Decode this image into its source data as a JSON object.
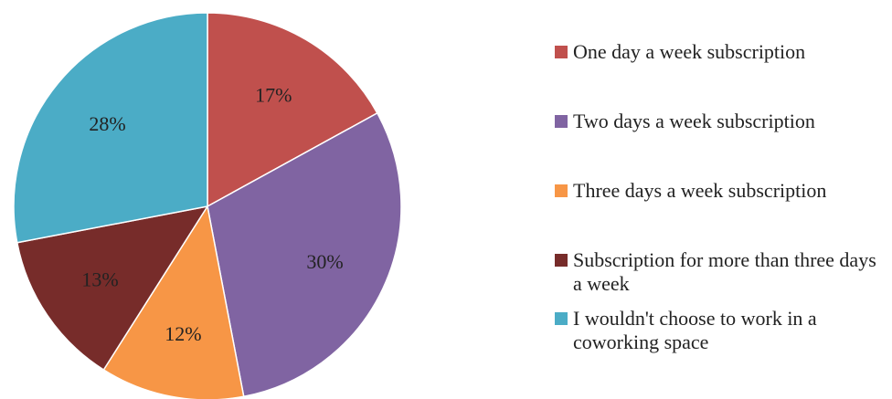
{
  "chart_data": {
    "type": "pie",
    "slices": [
      {
        "label": "One day a week subscription",
        "value": 17,
        "display": "17%",
        "color": "#C0504D"
      },
      {
        "label": "Two days a week subscription",
        "value": 30,
        "display": "30%",
        "color": "#8064A2"
      },
      {
        "label": "Three days a week subscription",
        "value": 12,
        "display": "12%",
        "color": "#F79646"
      },
      {
        "label": "Subscription for more than three days a week",
        "value": 13,
        "display": "13%",
        "color": "#772C2A"
      },
      {
        "label": "I wouldn't choose to work in a coworking space",
        "value": 28,
        "display": "28%",
        "color": "#4BACC6"
      }
    ],
    "start_angle_deg": 0,
    "direction": "clockwise",
    "legend_position": "right"
  }
}
